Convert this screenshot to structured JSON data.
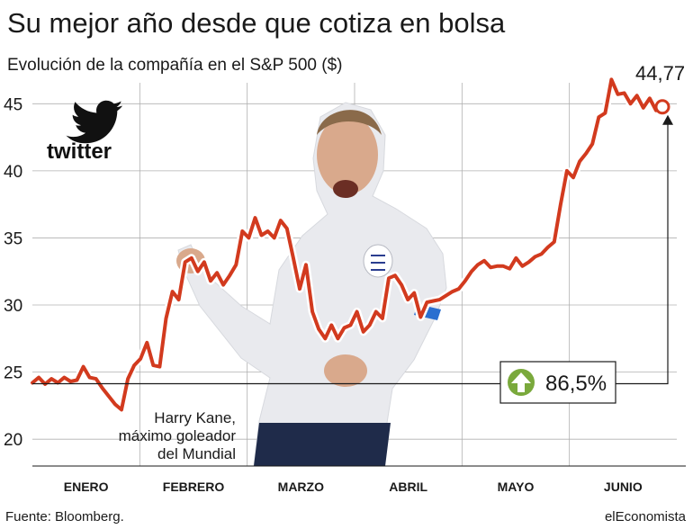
{
  "title": "Su mejor año desde que cotiza en bolsa",
  "subtitle": "Evolución de la compañía en el S&P 500 ($)",
  "source": "Fuente: Bloomberg.",
  "brand": "elEconomista",
  "logo_text": "twitter",
  "photo_caption": [
    "Harry Kane,",
    "máximo goleador",
    "del Mundial"
  ],
  "colors": {
    "line": "#d23a1e",
    "grid": "#b0b0b0",
    "arrow_badge": "#7aa93c",
    "text": "#1a1a1a"
  },
  "chart_data": {
    "type": "line",
    "title": "Su mejor año desde que cotiza en bolsa",
    "subtitle": "Evolución de la compañía en el S&P 500 ($)",
    "xlabel": "",
    "ylabel": "",
    "ylim": [
      18,
      47.5
    ],
    "yticks": [
      20,
      25,
      30,
      35,
      40,
      45
    ],
    "ytick_labels": [
      "20",
      "25",
      "30",
      "35",
      "40",
      "45"
    ],
    "months": [
      "ENERO",
      "FEBRERO",
      "MARZO",
      "ABRIL",
      "MAYO",
      "JUNIO"
    ],
    "grid": true,
    "series": [
      {
        "values": [
          24.2,
          24.6,
          24.1,
          24.5,
          24.2,
          24.6,
          24.3,
          24.4,
          25.4,
          24.6,
          24.5,
          23.8,
          23.2,
          22.6,
          22.2,
          24.5,
          25.5,
          26.0,
          27.2,
          25.5,
          25.4,
          29.0,
          31.0,
          30.4,
          33.2,
          33.5,
          32.5,
          33.2,
          31.8,
          32.4,
          31.5,
          32.2,
          33.0,
          35.5,
          35.0,
          36.5,
          35.2,
          35.5,
          35.0,
          36.3,
          35.7,
          33.5,
          31.2,
          33.0,
          29.5,
          28.2,
          27.5,
          28.5,
          27.5,
          28.3,
          28.5,
          29.5,
          28.0,
          28.5,
          29.5,
          29.0,
          32.0,
          32.2,
          31.5,
          30.4,
          30.9,
          29.1,
          30.2,
          30.3,
          30.4,
          30.7,
          31.0,
          31.2,
          31.8,
          32.5,
          33.0,
          33.3,
          32.8,
          32.9,
          32.9,
          32.7,
          33.5,
          32.9,
          33.2,
          33.6,
          33.8,
          34.3,
          34.7,
          37.5,
          40.0,
          39.5,
          40.7,
          41.3,
          42.0,
          44.0,
          44.3,
          46.8,
          45.7,
          45.8,
          45.0,
          45.6,
          44.7,
          45.4,
          44.5,
          44.77
        ],
        "color": "#d23a1e"
      }
    ],
    "annotations": [
      {
        "label": "44,77",
        "value": 44.77
      },
      {
        "label": "86,5%",
        "value": 86.5,
        "unit": "%"
      }
    ]
  }
}
